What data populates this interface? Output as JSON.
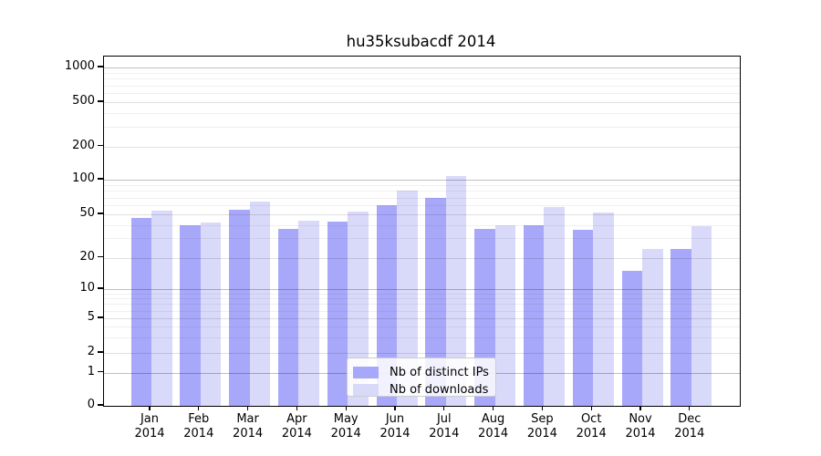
{
  "chart_data": {
    "type": "bar",
    "title": "hu35ksubacdf 2014",
    "categories": [
      "Jan",
      "Feb",
      "Mar",
      "Apr",
      "May",
      "Jun",
      "Jul",
      "Aug",
      "Sep",
      "Oct",
      "Nov",
      "Dec"
    ],
    "x_tick_year": "2014",
    "series": [
      {
        "name": "Nb of distinct IPs",
        "color": "#a8a8fa",
        "values": [
          46,
          40,
          55,
          37,
          43,
          60,
          69,
          37,
          40,
          36,
          15,
          24
        ]
      },
      {
        "name": "Nb of downloads",
        "color": "#d9d9fa",
        "values": [
          54,
          42,
          65,
          44,
          53,
          80,
          108,
          40,
          58,
          52,
          24,
          39
        ]
      }
    ],
    "y_ticks": [
      0,
      1,
      2,
      5,
      10,
      20,
      50,
      100,
      200,
      500,
      1000
    ],
    "ylim": [
      0,
      1000
    ],
    "yscale": "log-like",
    "grid": true,
    "legend": {
      "labels": [
        "Nb of distinct IPs",
        "Nb of downloads"
      ],
      "position": "lower center"
    }
  }
}
